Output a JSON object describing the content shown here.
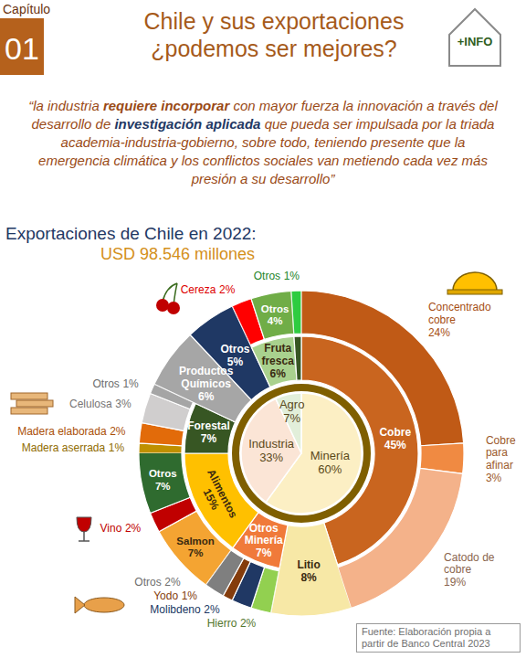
{
  "header": {
    "chapter_label": "Capítulo",
    "chapter_number": "01",
    "title": [
      "Chile y sus exportaciones",
      "¿podemos ser mejores?"
    ],
    "info_button": "+INFO"
  },
  "quote": [
    "“la industria ",
    "requiere incorporar",
    " con mayor fuerza la innovación a través del desarrollo de ",
    "investigación aplicada",
    " que pueda ser impulsada por la triada academia-industria-gobierno, sobre todo, teniendo presente que la emergencia climática y los conflictos sociales van metiendo cada vez más presión a su desarrollo”"
  ],
  "chart_data": {
    "type": "sunburst",
    "title": "Exportaciones de Chile en 2022:",
    "subtitle": "USD 98.546 millones",
    "data_labels": true,
    "sectors": [
      {
        "name": "Minería",
        "value": 60,
        "value_label": "60%",
        "color": "#fcefc4",
        "children": [
          {
            "name": "Cobre",
            "value": 45,
            "value_label": "45%",
            "color": "#c9651f",
            "children": [
              {
                "name": "Concentrado cobre",
                "value": 24,
                "value_label": "24%",
                "color": "#c05a16"
              },
              {
                "name": "Cobre para afinar",
                "value": 3,
                "value_label": "3%",
                "color": "#f08a42"
              },
              {
                "name": "Catodo de cobre",
                "value": 19,
                "value_label": "19%",
                "color": "#f4b28a"
              }
            ]
          },
          {
            "name": "Litio",
            "value": 8,
            "value_label": "8%",
            "color": "#f7e8a6"
          },
          {
            "name": "Otros Minería",
            "value": 7,
            "value_label": "7%",
            "color": "#f07a3a",
            "children": [
              {
                "name": "Hierro",
                "value": 2,
                "value_label": "2%",
                "color": "#92d050"
              },
              {
                "name": "Molibdeno",
                "value": 2,
                "value_label": "2%",
                "color": "#203864"
              },
              {
                "name": "Yodo",
                "value": 1,
                "value_label": "1%",
                "color": "#843c0c"
              },
              {
                "name": "Otros",
                "value": 2,
                "value_label": "2%",
                "color": "#7f7f7f"
              }
            ]
          }
        ]
      },
      {
        "name": "Industria",
        "value": 33,
        "value_label": "33%",
        "color": "#fbe5d6",
        "children": [
          {
            "name": "Alimentos",
            "value": 15,
            "value_label": "15%",
            "color": "#ffc000",
            "children": [
              {
                "name": "Salmon",
                "value": 7,
                "value_label": "7%",
                "color": "#f4a432"
              },
              {
                "name": "Vino",
                "value": 2,
                "value_label": "2%",
                "color": "#c00000"
              },
              {
                "name": "Otros",
                "value": 7,
                "value_label": "7%",
                "color": "#2f6b2f"
              }
            ]
          },
          {
            "name": "Forestal",
            "value": 7,
            "value_label": "7%",
            "color": "#375623",
            "children": [
              {
                "name": "Madera aserrada",
                "value": 1,
                "value_label": "1%",
                "color": "#bf9000"
              },
              {
                "name": "Madera elaborada",
                "value": 2,
                "value_label": "2%",
                "color": "#e26b0a"
              },
              {
                "name": "Celulosa",
                "value": 3,
                "value_label": "3%",
                "color": "#d0cece"
              },
              {
                "name": "Otros",
                "value": 1,
                "value_label": "1%",
                "color": "#a5a5a5"
              }
            ]
          },
          {
            "name": "Productos Químicos",
            "value": 6,
            "value_label": "6%",
            "color": "#a6a6a6"
          },
          {
            "name": "Otros",
            "value": 5,
            "value_label": "5%",
            "color": "#1f3864"
          }
        ]
      },
      {
        "name": "Agro",
        "value": 7,
        "value_label": "7%",
        "color": "#e2efda",
        "children": [
          {
            "name": "Fruta fresca",
            "value": 6,
            "value_label": "6%",
            "color": "#a9d18e",
            "children": [
              {
                "name": "Cereza",
                "value": 2,
                "value_label": "2%",
                "color": "#ff0000"
              },
              {
                "name": "Otros",
                "value": 4,
                "value_label": "4%",
                "color": "#70ad47"
              }
            ]
          },
          {
            "name": null,
            "value": 1,
            "color": "#375623",
            "children": [
              {
                "name": "Otros",
                "value": 1,
                "value_label": "1%",
                "color": "#2ecc40"
              }
            ]
          }
        ]
      }
    ]
  },
  "source": "Fuente: Elaboración propia a partir de Banco Central 2023"
}
